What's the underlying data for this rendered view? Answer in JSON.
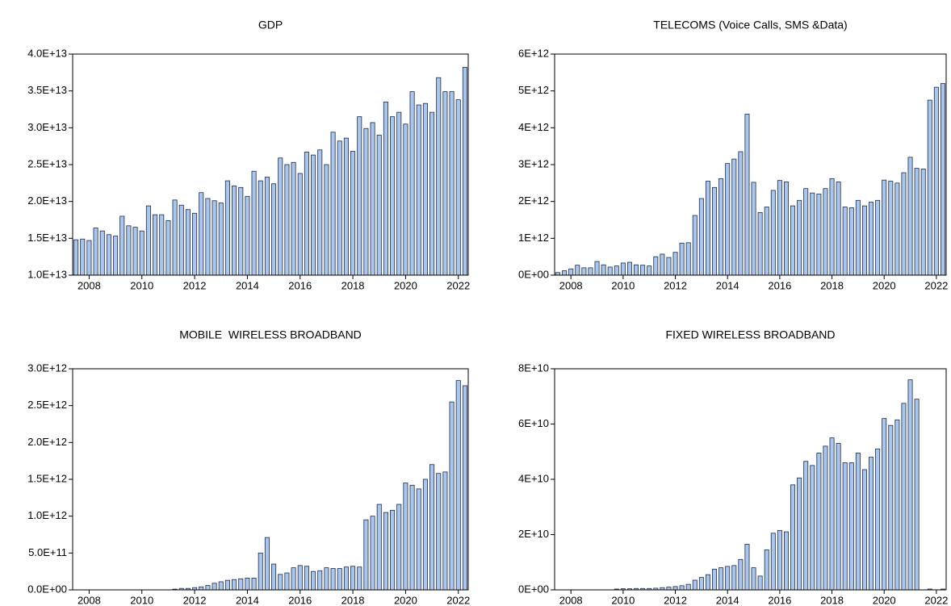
{
  "chart_data": [
    {
      "type": "bar",
      "title": "GDP",
      "categories": [
        null,
        null,
        "2008",
        null,
        null,
        null,
        null,
        null,
        null,
        null,
        "2010",
        null,
        null,
        null,
        null,
        null,
        null,
        null,
        "2012",
        null,
        null,
        null,
        null,
        null,
        null,
        null,
        "2014",
        null,
        null,
        null,
        null,
        null,
        null,
        null,
        "2016",
        null,
        null,
        null,
        null,
        null,
        null,
        null,
        "2018",
        null,
        null,
        null,
        null,
        null,
        null,
        null,
        "2020",
        null,
        null,
        null,
        null,
        null,
        null,
        null,
        "2022",
        null
      ],
      "values": [
        14800000000000.0,
        14900000000000.0,
        14700000000000.0,
        16400000000000.0,
        16000000000000.0,
        15500000000000.0,
        15300000000000.0,
        18000000000000.0,
        16700000000000.0,
        16500000000000.0,
        16000000000000.0,
        19400000000000.0,
        18200000000000.0,
        18200000000000.0,
        17400000000000.0,
        20200000000000.0,
        19500000000000.0,
        18900000000000.0,
        18400000000000.0,
        21200000000000.0,
        20400000000000.0,
        20100000000000.0,
        19800000000000.0,
        22800000000000.0,
        22100000000000.0,
        21900000000000.0,
        20700000000000.0,
        24100000000000.0,
        22800000000000.0,
        23300000000000.0,
        22400000000000.0,
        25900000000000.0,
        25000000000000.0,
        25300000000000.0,
        23800000000000.0,
        26700000000000.0,
        26300000000000.0,
        27000000000000.0,
        25000000000000.0,
        29400000000000.0,
        28200000000000.0,
        28600000000000.0,
        26800000000000.0,
        31500000000000.0,
        29900000000000.0,
        30700000000000.0,
        29000000000000.0,
        33500000000000.0,
        31500000000000.0,
        32100000000000.0,
        30500000000000.0,
        34900000000000.0,
        33100000000000.0,
        33300000000000.0,
        32100000000000.0,
        36800000000000.0,
        34900000000000.0,
        34900000000000.0,
        33800000000000.0,
        38200000000000.0
      ],
      "color": "#a9c6ef",
      "ylim": [
        10000000000000.0,
        40000000000000.0
      ],
      "yticks": [
        {
          "value": 10000000000000.0,
          "label": "1.0E+13"
        },
        {
          "value": 15000000000000.0,
          "label": "1.5E+13"
        },
        {
          "value": 20000000000000.0,
          "label": "2.0E+13"
        },
        {
          "value": 25000000000000.0,
          "label": "2.5E+13"
        },
        {
          "value": 30000000000000.0,
          "label": "3.0E+13"
        },
        {
          "value": 35000000000000.0,
          "label": "3.5E+13"
        },
        {
          "value": 40000000000000.0,
          "label": "4.0E+13"
        }
      ]
    },
    {
      "type": "bar",
      "title": "TELECOMS (Voice Calls, SMS &Data)",
      "categories": [
        null,
        null,
        "2008",
        null,
        null,
        null,
        null,
        null,
        null,
        null,
        "2010",
        null,
        null,
        null,
        null,
        null,
        null,
        null,
        "2012",
        null,
        null,
        null,
        null,
        null,
        null,
        null,
        "2014",
        null,
        null,
        null,
        null,
        null,
        null,
        null,
        "2016",
        null,
        null,
        null,
        null,
        null,
        null,
        null,
        "2018",
        null,
        null,
        null,
        null,
        null,
        null,
        null,
        "2020",
        null,
        null,
        null,
        null,
        null,
        null,
        null,
        "2022",
        null
      ],
      "values": [
        70000000000.0,
        120000000000.0,
        170000000000.0,
        270000000000.0,
        200000000000.0,
        200000000000.0,
        370000000000.0,
        280000000000.0,
        220000000000.0,
        250000000000.0,
        330000000000.0,
        350000000000.0,
        280000000000.0,
        270000000000.0,
        250000000000.0,
        500000000000.0,
        570000000000.0,
        480000000000.0,
        620000000000.0,
        870000000000.0,
        880000000000.0,
        1620000000000.0,
        2080000000000.0,
        2550000000000.0,
        2380000000000.0,
        2620000000000.0,
        3030000000000.0,
        3150000000000.0,
        3350000000000.0,
        4370000000000.0,
        2520000000000.0,
        1700000000000.0,
        1850000000000.0,
        2300000000000.0,
        2570000000000.0,
        2530000000000.0,
        1880000000000.0,
        2030000000000.0,
        2350000000000.0,
        2230000000000.0,
        2200000000000.0,
        2350000000000.0,
        2620000000000.0,
        2530000000000.0,
        1850000000000.0,
        1830000000000.0,
        2030000000000.0,
        1880000000000.0,
        1980000000000.0,
        2030000000000.0,
        2580000000000.0,
        2550000000000.0,
        2500000000000.0,
        2780000000000.0,
        3200000000000.0,
        2900000000000.0,
        2880000000000.0,
        4750000000000.0,
        5100000000000.0,
        5200000000000.0
      ],
      "color": "#a9c6ef",
      "ylim": [
        0,
        6000000000000.0
      ],
      "yticks": [
        {
          "value": 0,
          "label": "0E+00"
        },
        {
          "value": 1000000000000.0,
          "label": "1E+12"
        },
        {
          "value": 2000000000000.0,
          "label": "2E+12"
        },
        {
          "value": 3000000000000.0,
          "label": "3E+12"
        },
        {
          "value": 4000000000000.0,
          "label": "4E+12"
        },
        {
          "value": 5000000000000.0,
          "label": "5E+12"
        },
        {
          "value": 6000000000000.0,
          "label": "6E+12"
        }
      ]
    },
    {
      "type": "bar",
      "title": "MOBILE  WIRELESS BROADBAND",
      "categories": [
        null,
        null,
        "2008",
        null,
        null,
        null,
        null,
        null,
        null,
        null,
        "2010",
        null,
        null,
        null,
        null,
        null,
        null,
        null,
        "2012",
        null,
        null,
        null,
        null,
        null,
        null,
        null,
        "2014",
        null,
        null,
        null,
        null,
        null,
        null,
        null,
        "2016",
        null,
        null,
        null,
        null,
        null,
        null,
        null,
        "2018",
        null,
        null,
        null,
        null,
        null,
        null,
        null,
        "2020",
        null,
        null,
        null,
        null,
        null,
        null,
        null,
        "2022",
        null
      ],
      "values": [
        null,
        null,
        null,
        null,
        null,
        null,
        null,
        null,
        null,
        null,
        null,
        null,
        null,
        null,
        null,
        10000000000.0,
        20000000000.0,
        20000000000.0,
        30000000000.0,
        40000000000.0,
        60000000000.0,
        90000000000.0,
        110000000000.0,
        130000000000.0,
        140000000000.0,
        150000000000.0,
        160000000000.0,
        160000000000.0,
        500000000000.0,
        710000000000.0,
        350000000000.0,
        210000000000.0,
        230000000000.0,
        300000000000.0,
        330000000000.0,
        320000000000.0,
        250000000000.0,
        260000000000.0,
        300000000000.0,
        290000000000.0,
        290000000000.0,
        310000000000.0,
        320000000000.0,
        310000000000.0,
        950000000000.0,
        1000000000000.0,
        1160000000000.0,
        1050000000000.0,
        1080000000000.0,
        1160000000000.0,
        1450000000000.0,
        1420000000000.0,
        1370000000000.0,
        1500000000000.0,
        1700000000000.0,
        1580000000000.0,
        1600000000000.0,
        2550000000000.0,
        2840000000000.0,
        2770000000000.0
      ],
      "color": "#a9c6ef",
      "ylim": [
        0,
        3000000000000.0
      ],
      "yticks": [
        {
          "value": 0,
          "label": "0.0E+00"
        },
        {
          "value": 500000000000.0,
          "label": "5.0E+11"
        },
        {
          "value": 1000000000000.0,
          "label": "1.0E+12"
        },
        {
          "value": 1500000000000.0,
          "label": "1.5E+12"
        },
        {
          "value": 2000000000000.0,
          "label": "2.0E+12"
        },
        {
          "value": 2500000000000.0,
          "label": "2.5E+12"
        },
        {
          "value": 3000000000000.0,
          "label": "3.0E+12"
        }
      ]
    },
    {
      "type": "bar",
      "title": "FIXED WIRELESS BROADBAND",
      "categories": [
        null,
        null,
        "2008",
        null,
        null,
        null,
        null,
        null,
        null,
        null,
        "2010",
        null,
        null,
        null,
        null,
        null,
        null,
        null,
        "2012",
        null,
        null,
        null,
        null,
        null,
        null,
        null,
        "2014",
        null,
        null,
        null,
        null,
        null,
        null,
        null,
        "2016",
        null,
        null,
        null,
        null,
        null,
        null,
        null,
        "2018",
        null,
        null,
        null,
        null,
        null,
        null,
        null,
        "2020",
        null,
        null,
        null,
        null,
        null,
        null,
        null,
        "2022",
        null
      ],
      "values": [
        null,
        null,
        null,
        null,
        null,
        null,
        null,
        null,
        null,
        300000000.0,
        400000000.0,
        400000000.0,
        500000000.0,
        500000000.0,
        500000000.0,
        600000000.0,
        800000000.0,
        1000000000.0,
        1200000000.0,
        1500000000.0,
        2000000000.0,
        3500000000.0,
        4500000000.0,
        5500000000.0,
        7500000000.0,
        8000000000.0,
        8500000000.0,
        8800000000.0,
        11000000000.0,
        16500000000.0,
        8000000000.0,
        5000000000.0,
        14500000000.0,
        20500000000.0,
        21500000000.0,
        21000000000.0,
        38000000000.0,
        40500000000.0,
        46500000000.0,
        45000000000.0,
        49500000000.0,
        52000000000.0,
        55000000000.0,
        53000000000.0,
        46000000000.0,
        46000000000.0,
        49500000000.0,
        43500000000.0,
        48000000000.0,
        51000000000.0,
        62000000000.0,
        59500000000.0,
        61500000000.0,
        67500000000.0,
        76000000000.0,
        69000000000.0,
        null,
        300000000.0,
        null,
        300000000.0
      ],
      "color": "#a9c6ef",
      "ylim": [
        0,
        80000000000.0
      ],
      "yticks": [
        {
          "value": 0,
          "label": "0E+00"
        },
        {
          "value": 20000000000.0,
          "label": "2E+10"
        },
        {
          "value": 40000000000.0,
          "label": "4E+10"
        },
        {
          "value": 60000000000.0,
          "label": "6E+10"
        },
        {
          "value": 80000000000.0,
          "label": "8E+10"
        }
      ]
    }
  ]
}
